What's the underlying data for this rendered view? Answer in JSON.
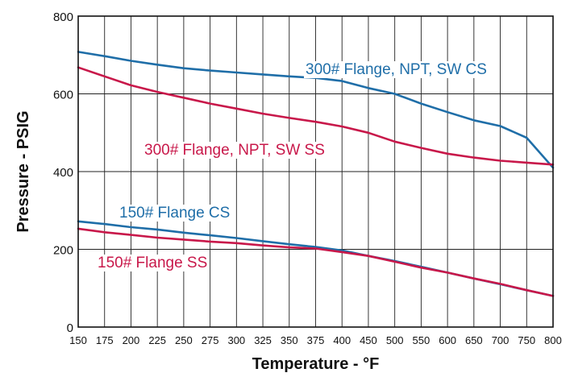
{
  "chart_data": {
    "type": "line",
    "xlabel": "Temperature - °F",
    "ylabel": "Pressure - PSIG",
    "xlim": [
      150,
      800
    ],
    "ylim": [
      0,
      800
    ],
    "x_ticks": [
      "150",
      "175",
      "200",
      "225",
      "250",
      "275",
      "300",
      "325",
      "350",
      "375",
      "400",
      "450",
      "500",
      "550",
      "600",
      "650",
      "700",
      "750",
      "800"
    ],
    "y_ticks": [
      "0",
      "200",
      "400",
      "600",
      "800"
    ],
    "grid": true,
    "series": [
      {
        "name": "300# Flange, NPT, SW CS",
        "color": "#1f6ea8",
        "points": [
          [
            150,
            708
          ],
          [
            175,
            697
          ],
          [
            200,
            685
          ],
          [
            225,
            675
          ],
          [
            250,
            666
          ],
          [
            275,
            660
          ],
          [
            300,
            655
          ],
          [
            325,
            650
          ],
          [
            350,
            645
          ],
          [
            375,
            641
          ],
          [
            400,
            633
          ],
          [
            450,
            615
          ],
          [
            500,
            600
          ],
          [
            550,
            575
          ],
          [
            600,
            553
          ],
          [
            650,
            532
          ],
          [
            700,
            517
          ],
          [
            750,
            487
          ],
          [
            800,
            410
          ]
        ]
      },
      {
        "name": "300# Flange, NPT, SW SS",
        "color": "#c8184a",
        "points": [
          [
            150,
            668
          ],
          [
            175,
            645
          ],
          [
            200,
            622
          ],
          [
            225,
            605
          ],
          [
            250,
            590
          ],
          [
            275,
            575
          ],
          [
            300,
            562
          ],
          [
            325,
            549
          ],
          [
            350,
            538
          ],
          [
            375,
            528
          ],
          [
            400,
            516
          ],
          [
            450,
            500
          ],
          [
            500,
            477
          ],
          [
            550,
            461
          ],
          [
            600,
            446
          ],
          [
            650,
            436
          ],
          [
            700,
            428
          ],
          [
            750,
            423
          ],
          [
            800,
            418
          ]
        ]
      },
      {
        "name": "150# Flange CS",
        "color": "#1f6ea8",
        "points": [
          [
            150,
            272
          ],
          [
            175,
            265
          ],
          [
            200,
            257
          ],
          [
            225,
            251
          ],
          [
            250,
            243
          ],
          [
            275,
            236
          ],
          [
            300,
            229
          ],
          [
            325,
            221
          ],
          [
            350,
            213
          ],
          [
            375,
            206
          ],
          [
            400,
            197
          ],
          [
            450,
            183
          ],
          [
            500,
            170
          ],
          [
            550,
            155
          ],
          [
            600,
            140
          ],
          [
            650,
            125
          ],
          [
            700,
            110
          ],
          [
            750,
            95
          ],
          [
            800,
            80
          ]
        ]
      },
      {
        "name": "150# Flange SS",
        "color": "#c8184a",
        "points": [
          [
            150,
            253
          ],
          [
            175,
            244
          ],
          [
            200,
            237
          ],
          [
            225,
            230
          ],
          [
            250,
            225
          ],
          [
            275,
            220
          ],
          [
            300,
            216
          ],
          [
            325,
            210
          ],
          [
            350,
            205
          ],
          [
            375,
            202
          ],
          [
            400,
            193
          ],
          [
            450,
            183
          ],
          [
            500,
            168
          ],
          [
            550,
            153
          ],
          [
            600,
            140
          ],
          [
            650,
            125
          ],
          [
            700,
            111
          ],
          [
            750,
            95
          ],
          [
            800,
            80
          ]
        ]
      }
    ]
  }
}
